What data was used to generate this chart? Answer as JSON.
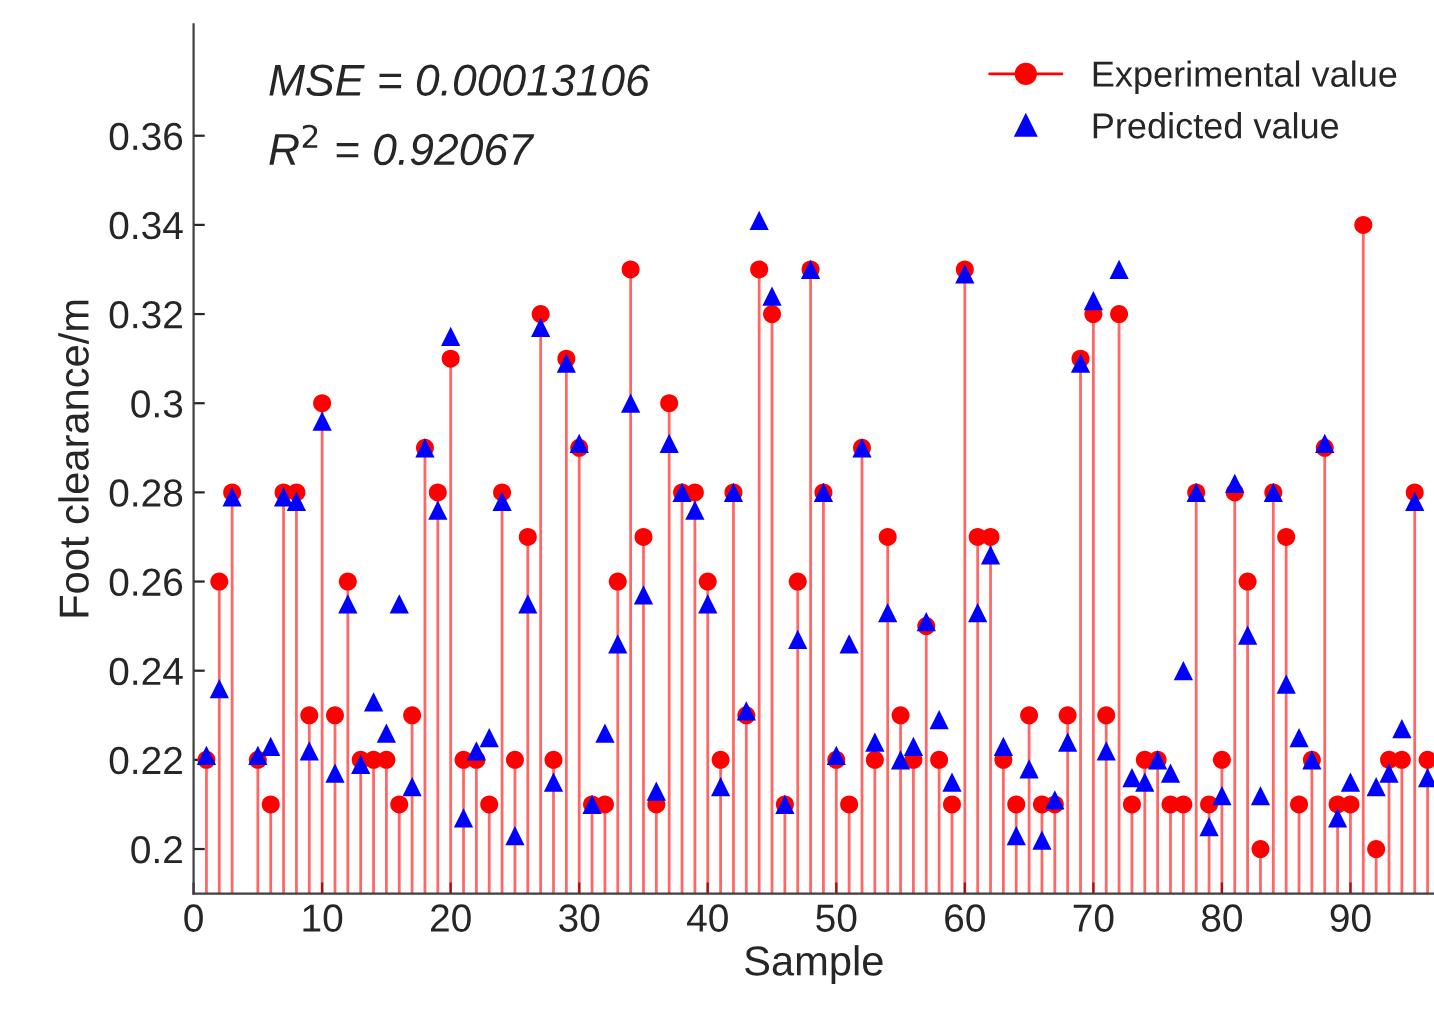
{
  "chart_data": {
    "type": "lollipop",
    "xlabel": "Sample",
    "ylabel": "Foot clearance/m",
    "annotations": [
      "MSE = 0.00013106",
      "R$^{2}$ = 0.92067"
    ],
    "x": [
      1,
      2,
      3,
      4,
      5,
      6,
      7,
      8,
      9,
      10,
      11,
      12,
      13,
      14,
      15,
      16,
      17,
      18,
      19,
      20,
      21,
      22,
      23,
      24,
      25,
      26,
      27,
      28,
      29,
      30,
      31,
      32,
      33,
      34,
      35,
      36,
      37,
      38,
      39,
      40,
      41,
      42,
      43,
      44,
      45,
      46,
      47,
      48,
      49,
      50,
      51,
      52,
      53,
      54,
      55,
      56,
      57,
      58,
      59,
      60,
      61,
      62,
      63,
      64,
      65,
      66,
      67,
      68,
      69,
      70,
      71,
      72,
      73,
      74,
      75,
      76,
      77,
      78,
      79,
      80,
      81,
      82,
      83,
      84,
      85,
      86,
      87,
      88,
      89,
      90,
      91,
      92,
      93,
      94,
      95,
      96
    ],
    "series": [
      {
        "name": "Experimental value",
        "type": "lollipop",
        "marker": "circle",
        "color": "#ff0000",
        "values": [
          0.22,
          0.26,
          0.28,
          null,
          0.22,
          0.21,
          0.28,
          0.28,
          0.23,
          0.3,
          0.23,
          0.26,
          0.22,
          0.22,
          0.22,
          0.21,
          0.23,
          0.29,
          0.28,
          0.31,
          0.22,
          0.22,
          0.21,
          0.28,
          0.22,
          0.27,
          0.32,
          0.22,
          0.31,
          0.29,
          0.21,
          0.21,
          0.26,
          0.33,
          0.27,
          0.21,
          0.3,
          0.28,
          0.28,
          0.26,
          0.22,
          0.28,
          0.23,
          0.33,
          0.32,
          0.21,
          0.26,
          0.33,
          0.28,
          0.22,
          0.21,
          0.29,
          0.22,
          0.27,
          0.23,
          0.22,
          0.25,
          0.22,
          0.21,
          0.33,
          0.27,
          0.27,
          0.22,
          0.21,
          0.23,
          0.21,
          0.21,
          0.23,
          0.31,
          0.32,
          0.23,
          0.32,
          0.21,
          0.22,
          0.22,
          0.21,
          0.21,
          0.28,
          0.21,
          0.22,
          0.28,
          0.26,
          0.2,
          0.28,
          0.27,
          0.21,
          0.22,
          0.29,
          0.21,
          0.21,
          0.34,
          0.2,
          0.22,
          0.22,
          0.28,
          0.22
        ]
      },
      {
        "name": "Predicted value",
        "type": "scatter",
        "marker": "triangle",
        "color": "#0000ff",
        "values": [
          0.221,
          0.236,
          0.279,
          null,
          0.221,
          0.223,
          0.279,
          0.278,
          0.222,
          0.296,
          0.217,
          0.255,
          0.219,
          0.233,
          0.226,
          0.255,
          0.214,
          0.29,
          0.276,
          0.315,
          0.207,
          0.222,
          0.225,
          0.278,
          0.203,
          0.255,
          0.317,
          0.215,
          0.309,
          0.291,
          0.21,
          0.226,
          0.246,
          0.3,
          0.257,
          0.213,
          0.291,
          0.28,
          0.276,
          0.255,
          0.214,
          0.28,
          0.231,
          0.341,
          0.324,
          0.21,
          0.247,
          0.33,
          0.28,
          0.221,
          0.246,
          0.29,
          0.224,
          0.253,
          0.22,
          0.223,
          0.251,
          0.229,
          0.215,
          0.329,
          0.253,
          0.266,
          0.223,
          0.203,
          0.218,
          0.202,
          0.211,
          0.224,
          0.309,
          0.323,
          0.222,
          0.33,
          0.216,
          0.215,
          0.22,
          0.217,
          0.24,
          0.28,
          0.205,
          0.212,
          0.282,
          0.248,
          0.212,
          0.28,
          0.237,
          0.225,
          0.22,
          0.291,
          0.207,
          0.215,
          null,
          0.214,
          0.217,
          0.227,
          0.278,
          0.216
        ]
      }
    ],
    "xlim": [
      0,
      96.5
    ],
    "ylim": [
      0.19,
      0.385
    ],
    "xticks": [
      0,
      10,
      20,
      30,
      40,
      50,
      60,
      70,
      80,
      90
    ],
    "yticks": [
      0.2,
      0.22,
      0.24,
      0.26,
      0.28,
      0.3,
      0.32,
      0.34,
      0.36
    ],
    "legend": "top right",
    "grid": false
  }
}
